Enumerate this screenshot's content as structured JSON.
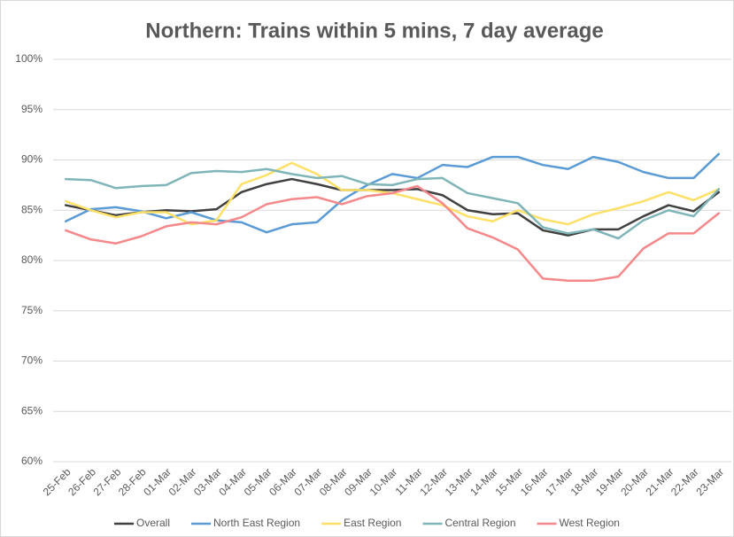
{
  "chart_data": {
    "type": "line",
    "title": "Northern: Trains within 5 mins, 7 day average",
    "categories": [
      "25-Feb",
      "26-Feb",
      "27-Feb",
      "28-Feb",
      "01-Mar",
      "02-Mar",
      "03-Mar",
      "04-Mar",
      "05-Mar",
      "06-Mar",
      "07-Mar",
      "08-Mar",
      "09-Mar",
      "10-Mar",
      "11-Mar",
      "12-Mar",
      "13-Mar",
      "14-Mar",
      "15-Mar",
      "16-Mar",
      "17-Mar",
      "18-Mar",
      "19-Mar",
      "20-Mar",
      "21-Mar",
      "22-Mar",
      "23-Mar"
    ],
    "series": [
      {
        "name": "Overall",
        "color": "#404040",
        "values": [
          85.5,
          85.0,
          84.5,
          84.8,
          85.0,
          84.9,
          85.1,
          86.8,
          87.6,
          88.1,
          87.6,
          87.0,
          87.0,
          87.0,
          87.1,
          86.5,
          85.0,
          84.6,
          84.7,
          83.0,
          82.5,
          83.1,
          83.1,
          84.4,
          85.5,
          84.9,
          86.8
        ]
      },
      {
        "name": "North East Region",
        "color": "#5b9bd5",
        "values": [
          83.9,
          85.1,
          85.3,
          84.9,
          84.2,
          84.8,
          84.0,
          83.8,
          82.8,
          83.6,
          83.8,
          86.0,
          87.5,
          88.6,
          88.2,
          89.5,
          89.3,
          90.3,
          90.3,
          89.5,
          89.1,
          90.3,
          89.8,
          88.8,
          88.2,
          88.2,
          90.6
        ]
      },
      {
        "name": "East Region",
        "color": "#ffe066",
        "values": [
          85.9,
          85.0,
          84.3,
          84.8,
          84.8,
          83.6,
          84.0,
          87.6,
          88.5,
          89.7,
          88.6,
          87.0,
          87.0,
          86.7,
          86.1,
          85.5,
          84.4,
          83.9,
          85.0,
          84.1,
          83.6,
          84.6,
          85.2,
          85.9,
          86.8,
          86.0,
          87.1
        ]
      },
      {
        "name": "Central Region",
        "color": "#7fb5b8",
        "values": [
          88.1,
          88.0,
          87.2,
          87.4,
          87.5,
          88.7,
          88.9,
          88.8,
          89.1,
          88.6,
          88.2,
          88.4,
          87.6,
          87.5,
          88.1,
          88.2,
          86.7,
          86.2,
          85.7,
          83.3,
          82.7,
          83.1,
          82.2,
          84.0,
          85.0,
          84.4,
          87.1
        ]
      },
      {
        "name": "West Region",
        "color": "#f4888a",
        "values": [
          83.0,
          82.1,
          81.7,
          82.4,
          83.4,
          83.8,
          83.6,
          84.3,
          85.6,
          86.1,
          86.3,
          85.6,
          86.4,
          86.7,
          87.4,
          85.7,
          83.2,
          82.3,
          81.1,
          78.2,
          78.0,
          78.0,
          78.4,
          81.2,
          82.7,
          82.7,
          84.7
        ]
      }
    ],
    "ylim": [
      60,
      100
    ],
    "yticks": [
      {
        "value": 60,
        "label": "60%"
      },
      {
        "value": 65,
        "label": "65%"
      },
      {
        "value": 70,
        "label": "70%"
      },
      {
        "value": 75,
        "label": "75%"
      },
      {
        "value": 80,
        "label": "80%"
      },
      {
        "value": 85,
        "label": "85%"
      },
      {
        "value": 90,
        "label": "90%"
      },
      {
        "value": 95,
        "label": "95%"
      },
      {
        "value": 100,
        "label": "100%"
      }
    ],
    "grid": true,
    "legend": "bottom"
  }
}
